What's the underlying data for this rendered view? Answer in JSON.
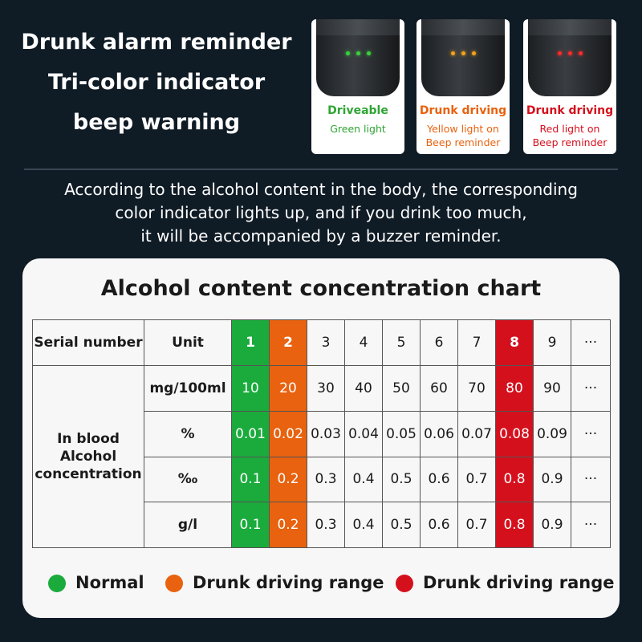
{
  "headline": [
    "Drunk alarm reminder",
    "Tri-color indicator",
    "beep warning"
  ],
  "cards": [
    {
      "title": "Driveable",
      "sub": [
        "Green light"
      ],
      "color": "#2fa534",
      "dot": "#39d13c"
    },
    {
      "title": "Drunk driving",
      "sub": [
        "Yellow light on",
        "Beep reminder"
      ],
      "color": "#e8620f",
      "dot": "#f5a21a"
    },
    {
      "title": "Drunk driving",
      "sub": [
        "Red light on",
        "Beep reminder"
      ],
      "color": "#d5101d",
      "dot": "#ff2a2a"
    }
  ],
  "description": [
    "According to the alcohol content in the body, the corresponding",
    "color indicator lights up, and if you drink too much,",
    "it will be accompanied by a buzzer reminder."
  ],
  "chart": {
    "title": "Alcohol content concentration chart",
    "header": {
      "serial": "Serial number",
      "unit": "Unit",
      "numbers": [
        "1",
        "2",
        "3",
        "4",
        "5",
        "6",
        "7",
        "8",
        "9",
        "···"
      ]
    },
    "row_label": [
      "In blood",
      "Alcohol",
      "concentration"
    ],
    "rows": [
      {
        "unit": "mg/100ml",
        "values": [
          "10",
          "20",
          "30",
          "40",
          "50",
          "60",
          "70",
          "80",
          "90",
          "···"
        ]
      },
      {
        "unit": "%",
        "values": [
          "0.01",
          "0.02",
          "0.03",
          "0.04",
          "0.05",
          "0.06",
          "0.07",
          "0.08",
          "0.09",
          "···"
        ]
      },
      {
        "unit": "‰",
        "values": [
          "0.1",
          "0.2",
          "0.3",
          "0.4",
          "0.5",
          "0.6",
          "0.7",
          "0.8",
          "0.9",
          "···"
        ]
      },
      {
        "unit": "g/l",
        "values": [
          "0.1",
          "0.2",
          "0.3",
          "0.4",
          "0.5",
          "0.6",
          "0.7",
          "0.8",
          "0.9",
          "···"
        ]
      }
    ],
    "column_colors": [
      "green",
      "orange",
      "",
      "",
      "",
      "",
      "",
      "red",
      "",
      ""
    ]
  },
  "legend": [
    {
      "label": "Normal",
      "color": "#1aab3c"
    },
    {
      "label": "Drunk driving range",
      "color": "#e8620f"
    },
    {
      "label": "Drunk driving range",
      "color": "#d5101d"
    }
  ]
}
